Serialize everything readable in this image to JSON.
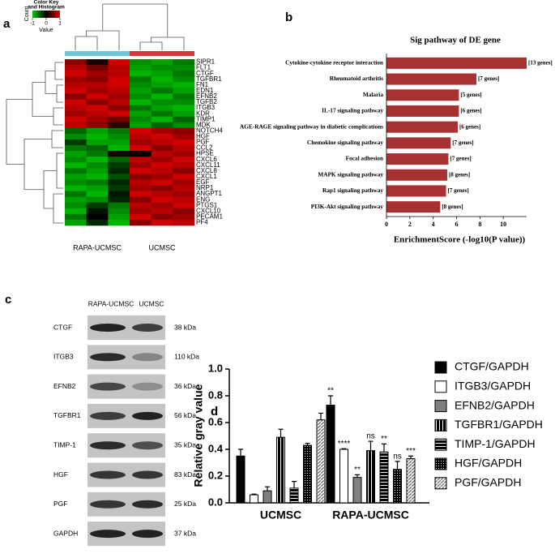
{
  "chart_data": [
    {
      "type": "heatmap",
      "panel_label": "a",
      "rows": [
        "SIPR1",
        "FLT1",
        "CTGF",
        "TGFBR1",
        "FN1",
        "EDN1",
        "EFNB2",
        "TGFB2",
        "ITGB3",
        "KDR",
        "TIMP1",
        "MDK",
        "NOTCH4",
        "HGF",
        "PGF",
        "CCL2",
        "HPSE",
        "CXCL6",
        "CXCL11",
        "CXCL8",
        "CXCL1",
        "EGF",
        "NRP1",
        "ANGPT1",
        "ENG",
        "PTGS1",
        "CXCL10",
        "PECAM1",
        "PF4"
      ],
      "column_groups": [
        "RAPA-UCMSC",
        "UCMSC"
      ],
      "group_colors": [
        "#6ec6d8",
        "#d6383c"
      ],
      "columns_per_group": 3,
      "values": [
        [
          0.6,
          0.1,
          0.9,
          -0.7,
          -0.8,
          -0.6
        ],
        [
          0.8,
          0.5,
          0.8,
          -0.8,
          -0.7,
          -0.7
        ],
        [
          0.9,
          0.7,
          0.8,
          -0.9,
          -0.8,
          -0.6
        ],
        [
          0.7,
          0.6,
          0.9,
          -0.6,
          -0.9,
          -0.7
        ],
        [
          0.8,
          0.8,
          0.9,
          -0.7,
          -0.8,
          -0.9
        ],
        [
          0.9,
          0.7,
          0.8,
          -0.8,
          -0.6,
          -0.8
        ],
        [
          0.6,
          0.9,
          0.7,
          -0.7,
          -0.9,
          -0.6
        ],
        [
          0.9,
          0.6,
          0.8,
          -0.9,
          -0.7,
          -0.7
        ],
        [
          0.8,
          0.9,
          0.6,
          -0.6,
          -0.8,
          -0.9
        ],
        [
          0.7,
          0.8,
          0.9,
          -0.8,
          -0.6,
          -0.8
        ],
        [
          0.9,
          0.7,
          0.5,
          -0.7,
          -0.9,
          -0.5
        ],
        [
          0.8,
          0.6,
          0.2,
          -0.8,
          -0.5,
          -0.7
        ],
        [
          -0.5,
          -0.8,
          -0.6,
          0.9,
          0.7,
          0.6
        ],
        [
          -0.7,
          -0.9,
          -0.7,
          0.8,
          0.9,
          0.7
        ],
        [
          -0.3,
          -0.8,
          -0.8,
          0.7,
          0.8,
          0.9
        ],
        [
          -0.6,
          -0.5,
          -0.9,
          0.9,
          0.6,
          0.8
        ],
        [
          -0.8,
          -0.6,
          0.1,
          0.0,
          0.8,
          0.7
        ],
        [
          -0.7,
          -0.9,
          -0.5,
          0.8,
          0.7,
          0.9
        ],
        [
          -0.9,
          -0.7,
          -0.3,
          0.7,
          0.9,
          0.8
        ],
        [
          -0.6,
          -0.8,
          -0.2,
          0.9,
          0.8,
          0.6
        ],
        [
          -0.8,
          -0.9,
          -0.4,
          0.6,
          0.7,
          0.9
        ],
        [
          -0.7,
          -0.6,
          -0.2,
          0.8,
          0.9,
          0.7
        ],
        [
          -0.9,
          -0.8,
          -0.3,
          0.7,
          0.6,
          0.8
        ],
        [
          -0.6,
          -0.9,
          -0.1,
          0.9,
          0.8,
          0.7
        ],
        [
          -0.8,
          -0.7,
          -0.2,
          0.6,
          0.9,
          0.8
        ],
        [
          -0.7,
          -0.3,
          -0.6,
          0.8,
          0.7,
          0.9
        ],
        [
          -0.9,
          -0.1,
          -0.7,
          0.7,
          0.8,
          0.6
        ],
        [
          -0.6,
          0.0,
          -0.8,
          0.9,
          0.6,
          0.7
        ],
        [
          -0.8,
          -0.2,
          -0.9,
          0.6,
          0.9,
          0.8
        ]
      ],
      "zlim": [
        -1,
        1
      ],
      "colors": [
        "#00c800",
        "#000000",
        "#e60000"
      ],
      "colorbar": {
        "title": [
          "Color Key",
          "and Histogram"
        ],
        "ylabel": "Count",
        "xlabel": "Value",
        "ticks": [
          -1,
          0,
          1
        ]
      }
    },
    {
      "type": "hbar",
      "panel_label": "b",
      "title": "Sig pathway of DE gene",
      "categories": [
        "Cytokine-cytokine receptor interaction",
        "Rheumatoid arthritis",
        "Malaria",
        "IL-17 signaling pathway",
        "AGE-RAGE signaling pathway in diabetic complications",
        "Chemokine signaling pathway",
        "Focal adhesion",
        "MAPK signaling pathway",
        "Rap1 signaling pathway",
        "PI3K-Akt signaling pathway"
      ],
      "values": [
        12.0,
        7.7,
        6.2,
        6.2,
        6.1,
        5.5,
        5.3,
        5.2,
        5.1,
        4.6
      ],
      "gene_labels": [
        "[13 genes]",
        "[7 genes]",
        "[5 genes]",
        "[6 genes]",
        "[6 genes]",
        "[7 genes]",
        "[7 genes]",
        "[8 genes]",
        "[7 genes]",
        "[8 genes]"
      ],
      "color": "#a83232",
      "xlabel": "EnrichmentScore (-log10(P value))",
      "xlim": [
        0,
        12
      ],
      "xticks": [
        0,
        2,
        4,
        6,
        8,
        10
      ]
    },
    {
      "type": "grouped_bar",
      "panel_label": "d",
      "ylabel": "Relative gray value",
      "categories": [
        "UCMSC",
        "RAPA-UCMSC"
      ],
      "series": [
        {
          "name": "CTGF/GAPDH",
          "color": "#000000",
          "pattern": "solid",
          "values": [
            0.35,
            0.73
          ],
          "errors": [
            0.05,
            0.07
          ],
          "significance": "**"
        },
        {
          "name": "ITGB3/GAPDH",
          "color": "#ffffff",
          "pattern": "solid",
          "values": [
            0.06,
            0.4
          ],
          "errors": [
            0.005,
            0.005
          ],
          "significance": "****"
        },
        {
          "name": "EFNB2/GAPDH",
          "color": "#808080",
          "pattern": "solid",
          "values": [
            0.09,
            0.19
          ],
          "errors": [
            0.03,
            0.02
          ],
          "significance": "**"
        },
        {
          "name": "TGFBR1/GAPDH",
          "color": "#000000",
          "pattern": "vertical",
          "values": [
            0.49,
            0.39
          ],
          "errors": [
            0.06,
            0.07
          ],
          "significance": "ns"
        },
        {
          "name": "TIMP-1/GAPDH",
          "color": "#000000",
          "pattern": "horizontal",
          "values": [
            0.11,
            0.38
          ],
          "errors": [
            0.05,
            0.06
          ],
          "significance": "**"
        },
        {
          "name": "HGF/GAPDH",
          "color": "#000000",
          "pattern": "dots",
          "values": [
            0.43,
            0.25
          ],
          "errors": [
            0.015,
            0.06
          ],
          "significance": "ns"
        },
        {
          "name": "PGF/GAPDH",
          "color": "#9a9a9a",
          "pattern": "diagonal",
          "values": [
            0.62,
            0.33
          ],
          "errors": [
            0.05,
            0.02
          ],
          "significance": "***"
        }
      ],
      "ylim": [
        0,
        1
      ],
      "yticks": [
        {
          "value": 0,
          "label": "0.0"
        },
        0.2,
        0.4,
        0.6,
        0.8,
        {
          "value": 1,
          "label": "1.0"
        }
      ]
    }
  ],
  "blot": {
    "panel_label": "c",
    "columns": [
      "RAPA-UCMSC",
      "UCMSC"
    ],
    "rows": [
      {
        "protein": "CTGF",
        "size": "38 kDa"
      },
      {
        "protein": "ITGB3",
        "size": "110 kDa"
      },
      {
        "protein": "EFNB2",
        "size": "36 kDa"
      },
      {
        "protein": "TGFBR1",
        "size": "56 kDa"
      },
      {
        "protein": "TIMP-1",
        "size": "35 kDa"
      },
      {
        "protein": "HGF",
        "size": "83 kDa"
      },
      {
        "protein": "PGF",
        "size": "25 kDa"
      },
      {
        "protein": "GAPDH",
        "size": "37 kDa"
      }
    ]
  }
}
